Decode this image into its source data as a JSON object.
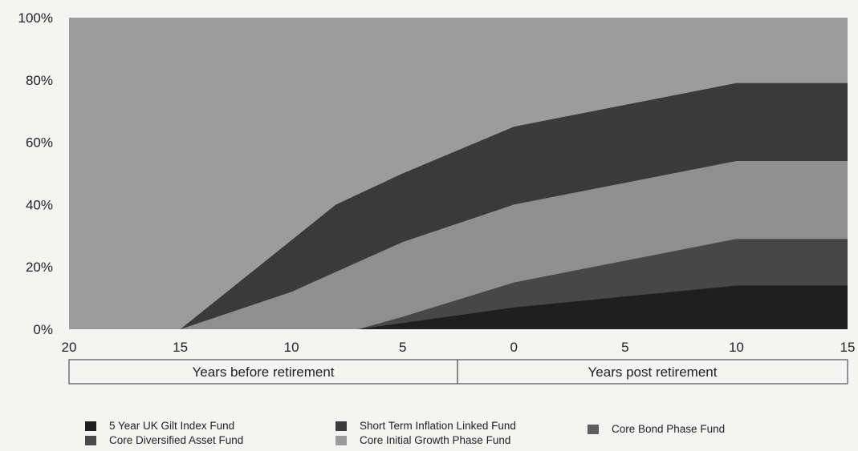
{
  "chart_data": {
    "type": "area",
    "stacked": true,
    "x": [
      20,
      15,
      10,
      5,
      0,
      5,
      10,
      15
    ],
    "x_positions": [
      -20,
      -15,
      -10,
      -7,
      -5,
      -2.5,
      0,
      5,
      10,
      15
    ],
    "x_tick_labels": [
      "20",
      "15",
      "10",
      "5",
      "0",
      "5",
      "10",
      "15"
    ],
    "y_tick_labels": [
      "0%",
      "20%",
      "40%",
      "60%",
      "80%",
      "100%"
    ],
    "ylim": [
      0,
      100
    ],
    "x_groups": [
      {
        "label": "Years before retirement",
        "from": -20,
        "to": -2.5
      },
      {
        "label": "Years post retirement",
        "from": -2.5,
        "to": 15
      }
    ],
    "series": [
      {
        "name": "5 Year UK Gilt Index Fund",
        "color": "#1f1f1f",
        "points": [
          [
            -20,
            0
          ],
          [
            -15,
            0
          ],
          [
            -7,
            0
          ],
          [
            -5,
            2
          ],
          [
            0,
            7
          ],
          [
            10,
            14
          ],
          [
            15,
            14
          ]
        ]
      },
      {
        "name": "Core Bond Phase Fund",
        "color": "#474747",
        "points": [
          [
            -20,
            0
          ],
          [
            -15,
            0
          ],
          [
            -7,
            0
          ],
          [
            -5,
            4
          ],
          [
            0,
            15
          ],
          [
            10,
            29
          ],
          [
            15,
            29
          ]
        ]
      },
      {
        "name": "Core Initial Growth Phase Fund",
        "color": "#8f8f8f",
        "points": [
          [
            -20,
            0
          ],
          [
            -15,
            0
          ],
          [
            -10,
            12
          ],
          [
            -5,
            28
          ],
          [
            0,
            40
          ],
          [
            10,
            54
          ],
          [
            15,
            54
          ]
        ]
      },
      {
        "name": "Short Term Inflation Linked Fund",
        "color": "#3a3a3a",
        "points": [
          [
            -20,
            0
          ],
          [
            -15,
            0
          ],
          [
            -8,
            40
          ],
          [
            -5,
            50
          ],
          [
            0,
            65
          ],
          [
            10,
            79
          ],
          [
            15,
            79
          ]
        ]
      },
      {
        "name": "Core Diversified Asset Fund",
        "color": "#9c9c9c",
        "points": [
          [
            -20,
            100
          ],
          [
            15,
            100
          ]
        ]
      }
    ]
  },
  "legend": [
    {
      "label": "5 Year UK Gilt Index Fund",
      "color": "#1f1f1f"
    },
    {
      "label": "Core Diversified Asset Fund",
      "color": "#4a4a4a"
    },
    {
      "label": "Short Term Inflation Linked Fund",
      "color": "#3a3a3a"
    },
    {
      "label": "Core Initial Growth Phase Fund",
      "color": "#9a9a9a"
    },
    {
      "label": "Core Bond Phase Fund",
      "color": "#5c5c5c"
    }
  ]
}
